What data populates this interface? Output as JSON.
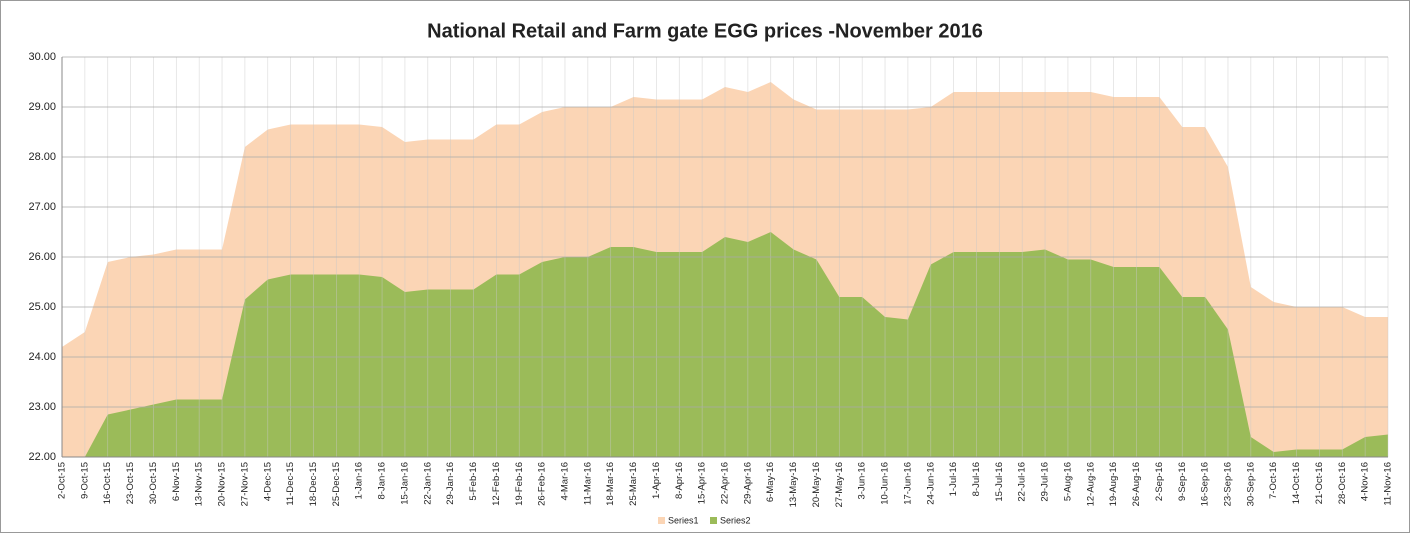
{
  "chart_data": {
    "type": "area",
    "title": "National Retail and Farm gate  EGG prices -November 2016",
    "categories": [
      "2-Oct-15",
      "9-Oct-15",
      "16-Oct-15",
      "23-Oct-15",
      "30-Oct-15",
      "6-Nov-15",
      "13-Nov-15",
      "20-Nov-15",
      "27-Nov-15",
      "4-Dec-15",
      "11-Dec-15",
      "18-Dec-15",
      "25-Dec-15",
      "1-Jan-16",
      "8-Jan-16",
      "15-Jan-16",
      "22-Jan-16",
      "29-Jan-16",
      "5-Feb-16",
      "12-Feb-16",
      "19-Feb-16",
      "26-Feb-16",
      "4-Mar-16",
      "11-Mar-16",
      "18-Mar-16",
      "25-Mar-16",
      "1-Apr-16",
      "8-Apr-16",
      "15-Apr-16",
      "22-Apr-16",
      "29-Apr-16",
      "6-May-16",
      "13-May-16",
      "20-May-16",
      "27-May-16",
      "3-Jun-16",
      "10-Jun-16",
      "17-Jun-16",
      "24-Jun-16",
      "1-Jul-16",
      "8-Jul-16",
      "15-Jul-16",
      "22-Jul-16",
      "29-Jul-16",
      "5-Aug-16",
      "12-Aug-16",
      "19-Aug-16",
      "26-Aug-16",
      "2-Sep-16",
      "9-Sep-16",
      "16-Sep-16",
      "23-Sep-16",
      "30-Sep-16",
      "7-Oct-16",
      "14-Oct-16",
      "21-Oct-16",
      "28-Oct-16",
      "4-Nov-16",
      "11-Nov-16"
    ],
    "series": [
      {
        "name": "Series1",
        "color": "#fbd5b5",
        "values": [
          24.2,
          24.5,
          25.9,
          26.0,
          26.05,
          26.15,
          26.15,
          26.15,
          28.2,
          28.55,
          28.65,
          28.65,
          28.65,
          28.65,
          28.6,
          28.3,
          28.35,
          28.35,
          28.35,
          28.65,
          28.65,
          28.9,
          29.0,
          29.0,
          29.0,
          29.2,
          29.15,
          29.15,
          29.15,
          29.4,
          29.3,
          29.5,
          29.15,
          28.95,
          28.95,
          28.95,
          28.95,
          28.95,
          29.0,
          29.3,
          29.3,
          29.3,
          29.3,
          29.3,
          29.3,
          29.3,
          29.2,
          29.2,
          29.2,
          28.6,
          28.6,
          27.8,
          25.4,
          25.1,
          25.0,
          25.0,
          25.0,
          24.8,
          24.8
        ]
      },
      {
        "name": "Series2",
        "color": "#9bbb59",
        "values": [
          22.0,
          22.0,
          22.85,
          22.95,
          23.05,
          23.15,
          23.15,
          23.15,
          25.15,
          25.55,
          25.65,
          25.65,
          25.65,
          25.65,
          25.6,
          25.3,
          25.35,
          25.35,
          25.35,
          25.65,
          25.65,
          25.9,
          26.0,
          26.0,
          26.2,
          26.2,
          26.1,
          26.1,
          26.1,
          26.4,
          26.3,
          26.5,
          26.15,
          25.95,
          25.2,
          25.2,
          24.8,
          24.75,
          25.85,
          26.1,
          26.1,
          26.1,
          26.1,
          26.15,
          25.95,
          25.95,
          25.8,
          25.8,
          25.8,
          25.2,
          25.2,
          24.55,
          22.4,
          22.1,
          22.15,
          22.15,
          22.15,
          22.4,
          22.45
        ]
      }
    ],
    "ylim": [
      22,
      30
    ],
    "yticks": [
      {
        "value": 22,
        "label": "22.00"
      },
      {
        "value": 23,
        "label": "23.00"
      },
      {
        "value": 24,
        "label": "24.00"
      },
      {
        "value": 25,
        "label": "25.00"
      },
      {
        "value": 26,
        "label": "26.00"
      },
      {
        "value": 27,
        "label": "27.00"
      },
      {
        "value": 28,
        "label": "28.00"
      },
      {
        "value": 29,
        "label": "29.00"
      },
      {
        "value": 30,
        "label": "30.00"
      }
    ],
    "grid": true,
    "legend": "bottom"
  }
}
